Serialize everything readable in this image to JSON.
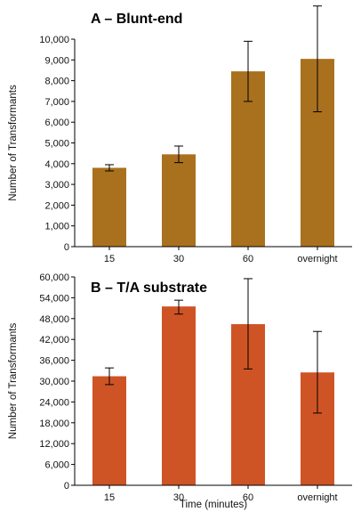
{
  "chart_data": [
    {
      "type": "bar",
      "title": "A – Blunt-end",
      "xlabel": "",
      "ylabel": "Number of Transformants",
      "categories": [
        "15",
        "30",
        "60",
        "overnight"
      ],
      "values": [
        3800,
        4450,
        8450,
        9050
      ],
      "error_low": [
        3650,
        4050,
        7000,
        6500
      ],
      "error_high": [
        3950,
        4850,
        9900,
        11600
      ],
      "ylim": [
        0,
        10000
      ],
      "yticks": [
        0,
        1000,
        2000,
        3000,
        4000,
        5000,
        6000,
        7000,
        8000,
        9000,
        10000
      ],
      "ytick_labels": [
        "0",
        "1,000",
        "2,000",
        "3,000",
        "4,000",
        "5,000",
        "6,000",
        "7,000",
        "8,000",
        "9,000",
        "10,000"
      ],
      "bar_color": "#A9711E",
      "grid": false
    },
    {
      "type": "bar",
      "title": "B – T/A substrate",
      "xlabel": "Time (minutes)",
      "ylabel": "Number of Transformants",
      "categories": [
        "15",
        "30",
        "60",
        "overnight"
      ],
      "values": [
        31400,
        51500,
        46400,
        32500
      ],
      "error_low": [
        29000,
        49300,
        33500,
        20800
      ],
      "error_high": [
        33800,
        53300,
        59500,
        44300
      ],
      "ylim": [
        0,
        60000
      ],
      "yticks": [
        0,
        6000,
        12000,
        18000,
        24000,
        30000,
        36000,
        42000,
        48000,
        54000,
        60000
      ],
      "ytick_labels": [
        "0",
        "6,000",
        "12,000",
        "18,000",
        "24,000",
        "30,000",
        "36,000",
        "42,000",
        "48,000",
        "54,000",
        "60,000"
      ],
      "bar_color": "#CF5425",
      "grid": false
    }
  ]
}
